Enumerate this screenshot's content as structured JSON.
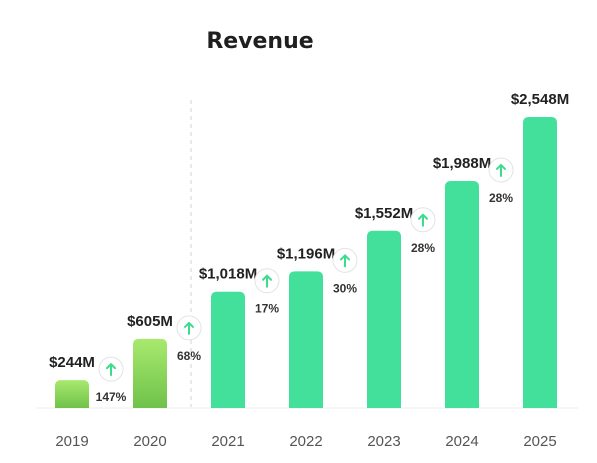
{
  "colors": {
    "actual_top": "#a8e96e",
    "actual_bottom": "#6fc24a",
    "forecast": "#42e09a",
    "arrow": "#3ddc8c",
    "divider": "#d0d0d0",
    "baseline": "#eeeeee"
  },
  "chart_data": {
    "type": "bar",
    "title": "Revenue",
    "xlabel": "",
    "ylabel": "",
    "ylim": [
      0,
      2548
    ],
    "categories": [
      "2019",
      "2020",
      "2021",
      "2022",
      "2023",
      "2024",
      "2025"
    ],
    "values": [
      244,
      605,
      1018,
      1196,
      1552,
      1988,
      2548
    ],
    "value_labels": [
      "$244M",
      "$605M",
      "$1,018M",
      "$1,196M",
      "$1,552M",
      "$1,988M",
      "$2,548M"
    ],
    "growth": [
      {
        "label": "147%",
        "icon": "arrow-up-icon"
      },
      {
        "label": "68%",
        "icon": "arrow-up-icon"
      },
      {
        "label": "17%",
        "icon": "arrow-up-icon"
      },
      {
        "label": "30%",
        "icon": "arrow-up-icon"
      },
      {
        "label": "28%",
        "icon": "arrow-up-icon"
      },
      {
        "label": "28%",
        "icon": "arrow-up-icon"
      }
    ],
    "divider_after_category": "2020",
    "grid": false,
    "legend": "none"
  }
}
